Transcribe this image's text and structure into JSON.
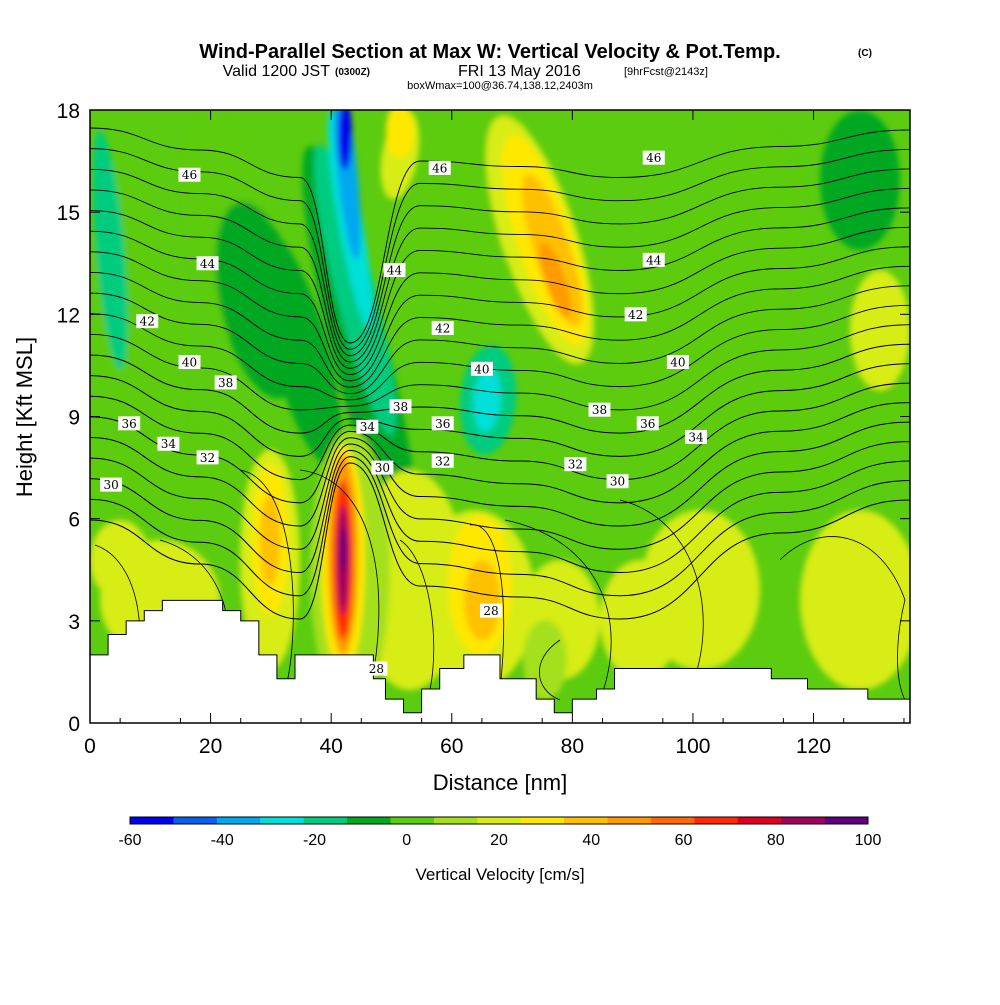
{
  "header": {
    "title": "Wind-Parallel Section at Max W: Vertical Velocity & Pot.Temp.",
    "copyright": "(C)",
    "valid_prefix": "Valid 1200 JST",
    "valid_utc": "(0300Z)",
    "valid_date": "FRI 13 May 2016",
    "forecast": "[9hrFcst@2143z]",
    "box_info": "boxWmax=100@36.74,138.12,2403m"
  },
  "chart_data": {
    "type": "heatmap",
    "xlabel": "Distance [nm]",
    "ylabel": "Height [Kft MSL]",
    "xlim": [
      0,
      136
    ],
    "ylim": [
      0,
      18
    ],
    "xticks": [
      "0",
      "20",
      "40",
      "60",
      "80",
      "100",
      "120"
    ],
    "yticks": [
      "0",
      "3",
      "6",
      "9",
      "12",
      "15",
      "18"
    ],
    "colorbar": {
      "label": "Vertical Velocity [cm/s]",
      "ticks": [
        "-60",
        "-40",
        "-20",
        "0",
        "20",
        "40",
        "60",
        "80",
        "100"
      ],
      "levels": [
        -60,
        -50,
        -40,
        -30,
        -20,
        -10,
        0,
        10,
        20,
        30,
        40,
        50,
        60,
        70,
        80,
        90,
        100
      ],
      "colors": [
        "#0000ee",
        "#0a5ef0",
        "#00a8f0",
        "#00e0d8",
        "#00cc80",
        "#00a820",
        "#5ccc10",
        "#a4e01c",
        "#d8ec14",
        "#ffe800",
        "#ffc000",
        "#ff9a00",
        "#ff6a00",
        "#ff2a00",
        "#e00020",
        "#a00060",
        "#60007c"
      ]
    },
    "potential_temperature_contour_labels": [
      {
        "text": "28",
        "x": 47.5,
        "y": 1.6
      },
      {
        "text": "28",
        "x": 66.5,
        "y": 3.3
      },
      {
        "text": "30",
        "x": 3.5,
        "y": 7.0
      },
      {
        "text": "30",
        "x": 48.5,
        "y": 7.5
      },
      {
        "text": "30",
        "x": 87.5,
        "y": 7.1
      },
      {
        "text": "32",
        "x": 19.5,
        "y": 7.8
      },
      {
        "text": "32",
        "x": 58.5,
        "y": 7.7
      },
      {
        "text": "32",
        "x": 80.5,
        "y": 7.6
      },
      {
        "text": "34",
        "x": 13,
        "y": 8.2
      },
      {
        "text": "34",
        "x": 46,
        "y": 8.7
      },
      {
        "text": "34",
        "x": 100.5,
        "y": 8.4
      },
      {
        "text": "36",
        "x": 6.5,
        "y": 8.8
      },
      {
        "text": "36",
        "x": 58.5,
        "y": 8.8
      },
      {
        "text": "36",
        "x": 92.5,
        "y": 8.8
      },
      {
        "text": "38",
        "x": 22.5,
        "y": 10.0
      },
      {
        "text": "38",
        "x": 51.5,
        "y": 9.3
      },
      {
        "text": "38",
        "x": 84.5,
        "y": 9.2
      },
      {
        "text": "40",
        "x": 16.5,
        "y": 10.6
      },
      {
        "text": "40",
        "x": 65,
        "y": 10.4
      },
      {
        "text": "40",
        "x": 97.5,
        "y": 10.6
      },
      {
        "text": "42",
        "x": 9.5,
        "y": 11.8
      },
      {
        "text": "42",
        "x": 58.5,
        "y": 11.6
      },
      {
        "text": "42",
        "x": 90.5,
        "y": 12.0
      },
      {
        "text": "44",
        "x": 19.5,
        "y": 13.5
      },
      {
        "text": "44",
        "x": 50.5,
        "y": 13.3
      },
      {
        "text": "44",
        "x": 93.5,
        "y": 13.6
      },
      {
        "text": "46",
        "x": 16.5,
        "y": 16.1
      },
      {
        "text": "46",
        "x": 58,
        "y": 16.3
      },
      {
        "text": "46",
        "x": 93.5,
        "y": 16.6
      }
    ],
    "vertical_velocity_features": [
      {
        "x": 42.5,
        "y": 5.0,
        "value": 100
      },
      {
        "x": 42.0,
        "y": 17.0,
        "value": -60
      },
      {
        "x": 43.5,
        "y": 13.5,
        "value": -25
      },
      {
        "x": 67.0,
        "y": 9.8,
        "value": -30
      },
      {
        "x": 76.0,
        "y": 13.0,
        "value": 45
      },
      {
        "x": 30.0,
        "y": 5.5,
        "value": 40
      },
      {
        "x": 65.0,
        "y": 3.8,
        "value": 35
      }
    ],
    "terrain_top_kft": [
      [
        0,
        2.0
      ],
      [
        3,
        2.0
      ],
      [
        3,
        2.6
      ],
      [
        6,
        2.6
      ],
      [
        6,
        3.0
      ],
      [
        9,
        3.0
      ],
      [
        9,
        3.3
      ],
      [
        12,
        3.3
      ],
      [
        12,
        3.6
      ],
      [
        22,
        3.6
      ],
      [
        22,
        3.3
      ],
      [
        25,
        3.3
      ],
      [
        25,
        3.0
      ],
      [
        28,
        3.0
      ],
      [
        28,
        2.0
      ],
      [
        31,
        2.0
      ],
      [
        31,
        1.3
      ],
      [
        34,
        1.3
      ],
      [
        34,
        2.0
      ],
      [
        47,
        2.0
      ],
      [
        47,
        1.3
      ],
      [
        49,
        1.3
      ],
      [
        49,
        0.7
      ],
      [
        52,
        0.7
      ],
      [
        52,
        0.3
      ],
      [
        55,
        0.3
      ],
      [
        55,
        1.0
      ],
      [
        58,
        1.0
      ],
      [
        58,
        1.6
      ],
      [
        62,
        1.6
      ],
      [
        62,
        2.0
      ],
      [
        68,
        2.0
      ],
      [
        68,
        1.3
      ],
      [
        74,
        1.3
      ],
      [
        74,
        0.7
      ],
      [
        77,
        0.7
      ],
      [
        77,
        0.3
      ],
      [
        80,
        0.3
      ],
      [
        80,
        0.7
      ],
      [
        84,
        0.7
      ],
      [
        84,
        1.0
      ],
      [
        87,
        1.0
      ],
      [
        87,
        1.6
      ],
      [
        113,
        1.6
      ],
      [
        113,
        1.3
      ],
      [
        119,
        1.3
      ],
      [
        119,
        1.0
      ],
      [
        129,
        1.0
      ],
      [
        129,
        0.7
      ],
      [
        136,
        0.7
      ]
    ]
  }
}
